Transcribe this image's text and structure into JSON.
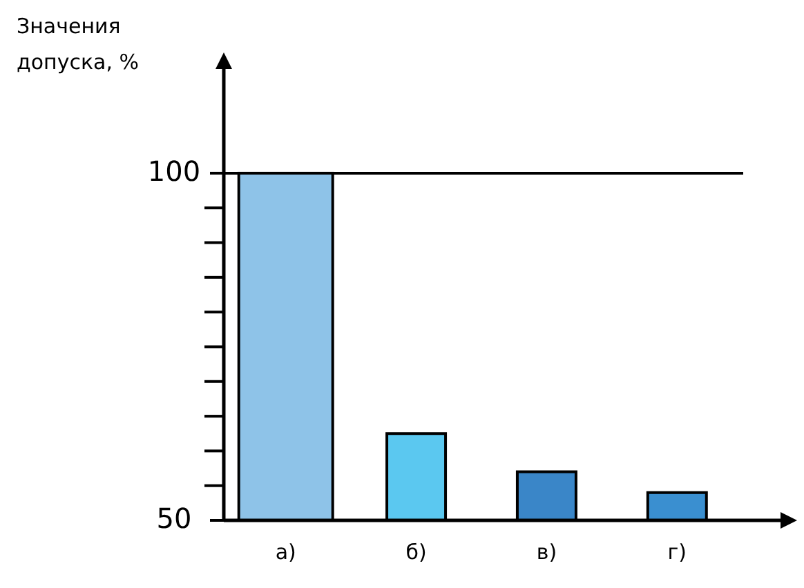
{
  "chart_data": {
    "type": "bar",
    "ylabel": "Значения допуска, %",
    "categories": [
      "а)",
      "б)",
      "в)",
      "г)"
    ],
    "values": [
      100,
      62.5,
      57,
      54
    ],
    "colors": [
      "#8ec3e8",
      "#5bc8f0",
      "#3a86c8",
      "#3a8fd0"
    ],
    "ylim": [
      50,
      115
    ],
    "yticks": [
      50,
      {
        "value": 55,
        "label": null
      },
      {
        "value": 60,
        "label": null
      },
      {
        "value": 65,
        "label": null
      },
      {
        "value": 70,
        "label": null
      },
      {
        "value": 75,
        "label": null
      },
      {
        "value": 80,
        "label": null
      },
      {
        "value": 85,
        "label": null
      },
      {
        "value": 90,
        "label": null
      },
      {
        "value": 95,
        "label": null
      },
      100
    ],
    "ref_lines": [
      {
        "axis": "y",
        "value": 100,
        "color": "#000000"
      }
    ]
  }
}
